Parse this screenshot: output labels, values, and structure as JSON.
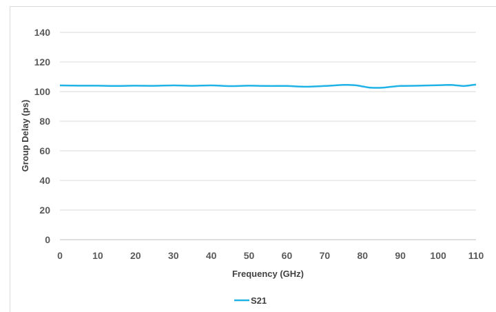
{
  "chart_data": {
    "type": "line",
    "title": "",
    "xlabel": "Frequency (GHz)",
    "ylabel": "Group Delay (ps)",
    "xlim": [
      0,
      110
    ],
    "ylim": [
      0,
      140
    ],
    "xticks": [
      0,
      10,
      20,
      30,
      40,
      50,
      60,
      70,
      80,
      90,
      100,
      110
    ],
    "yticks": [
      0,
      20,
      40,
      60,
      80,
      100,
      120,
      140
    ],
    "grid": true,
    "legend_position": "bottom",
    "series": [
      {
        "name": "S21",
        "color": "#1fb2e6",
        "x": [
          0,
          5,
          10,
          15,
          20,
          25,
          30,
          35,
          40,
          45,
          50,
          55,
          60,
          65,
          70,
          75,
          78,
          80,
          82,
          85,
          88,
          90,
          95,
          100,
          103,
          105,
          107,
          110
        ],
        "y": [
          104.2,
          104.0,
          104.0,
          103.8,
          104.0,
          103.9,
          104.2,
          103.9,
          104.2,
          103.7,
          104.0,
          103.8,
          103.8,
          103.3,
          103.8,
          104.5,
          104.3,
          103.5,
          102.7,
          102.6,
          103.4,
          103.8,
          104.0,
          104.3,
          104.5,
          104.2,
          103.8,
          104.8
        ]
      }
    ]
  }
}
